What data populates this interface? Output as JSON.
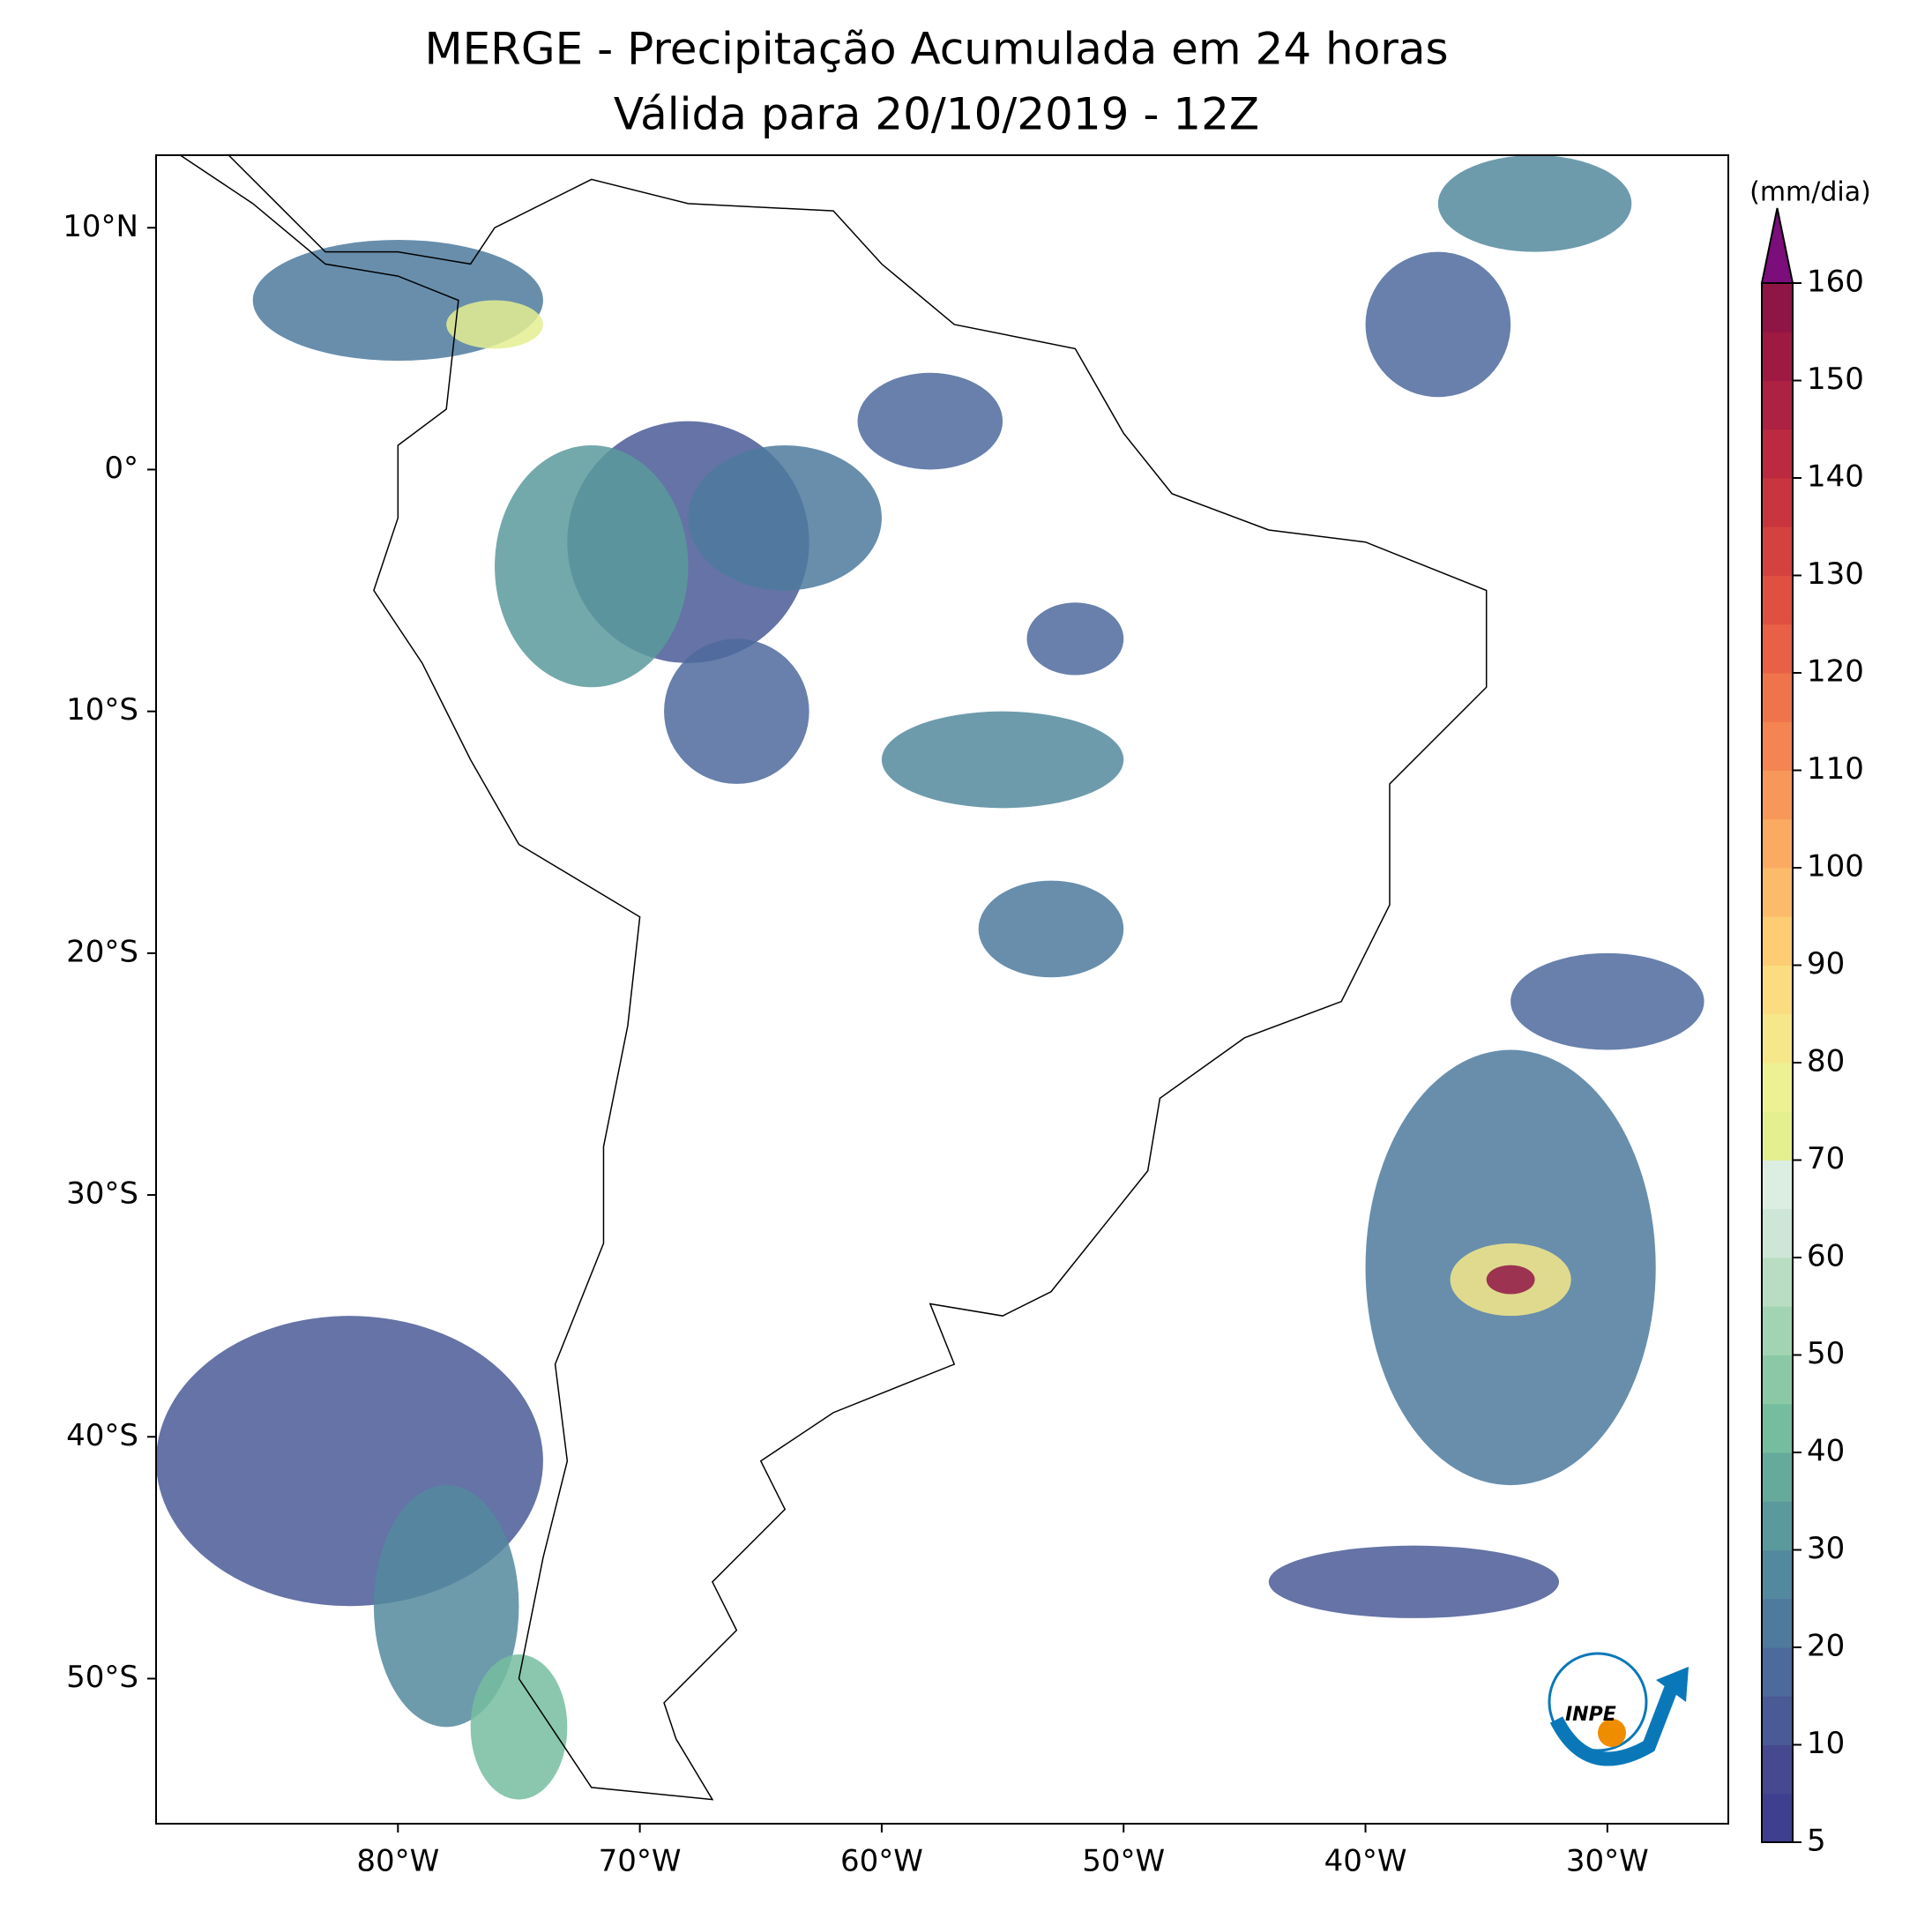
{
  "chart_data": {
    "type": "map",
    "title": "MERGE - Precipitação Acumulada em 24 horas",
    "subtitle": "Válida para 20/10/2019 - 12Z",
    "xlim": [
      -90,
      -25
    ],
    "ylim": [
      -56,
      13
    ],
    "xticks": [
      {
        "value": -80,
        "label": "80°W"
      },
      {
        "value": -70,
        "label": "70°W"
      },
      {
        "value": -60,
        "label": "60°W"
      },
      {
        "value": -50,
        "label": "50°W"
      },
      {
        "value": -40,
        "label": "40°W"
      },
      {
        "value": -30,
        "label": "30°W"
      }
    ],
    "yticks": [
      {
        "value": 10,
        "label": "10°N"
      },
      {
        "value": 0,
        "label": "0°"
      },
      {
        "value": -10,
        "label": "10°S"
      },
      {
        "value": -20,
        "label": "20°S"
      },
      {
        "value": -30,
        "label": "30°S"
      },
      {
        "value": -40,
        "label": "40°S"
      },
      {
        "value": -50,
        "label": "50°S"
      }
    ],
    "colorbar": {
      "label": "(mm/dia)",
      "range": [
        5,
        160
      ],
      "ticks": [
        5,
        10,
        20,
        30,
        40,
        50,
        60,
        70,
        80,
        90,
        100,
        110,
        120,
        130,
        140,
        150,
        160
      ],
      "colors": [
        "#3f3f8f",
        "#46498f",
        "#4a5a96",
        "#4d6a9c",
        "#4e7a9e",
        "#53899e",
        "#5a9a9c",
        "#66aa9c",
        "#76bda0",
        "#8bc9a6",
        "#a2d3b2",
        "#b9ddc2",
        "#cde6d5",
        "#dceee2",
        "#e4ef90",
        "#eef094",
        "#f6e88a",
        "#fbdc80",
        "#fdcc74",
        "#fcbb6a",
        "#fbaa62",
        "#f7985a",
        "#f48552",
        "#ef734b",
        "#e86045",
        "#df5040",
        "#d4423f",
        "#c8353f",
        "#bb2a40",
        "#ad2142",
        "#9e1a43",
        "#8f1545"
      ],
      "extend_color": "#7b0e7b"
    },
    "logo": "INPE"
  }
}
